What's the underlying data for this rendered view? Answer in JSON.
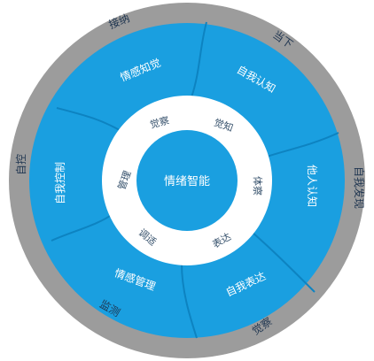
{
  "center_label": "情绪智能",
  "outer_ring_labels": [
    "接纳",
    "当下",
    "自我发现",
    "觉察",
    "监测",
    "自控"
  ],
  "blue_ring_labels": [
    "情感知觉",
    "自我认知",
    "他人认知",
    "自我表达",
    "情感管理",
    "自我控制"
  ],
  "inner_ring_labels": [
    "觉察",
    "觉知",
    "体察",
    "表达",
    "调适",
    "管理"
  ],
  "colors": {
    "outer_ring": "#9c9c9c",
    "blue_ring": "#1a9fe0",
    "blue_dark": "#0d83c1",
    "white_ring": "#ffffff",
    "center": "#1a9fe0"
  }
}
